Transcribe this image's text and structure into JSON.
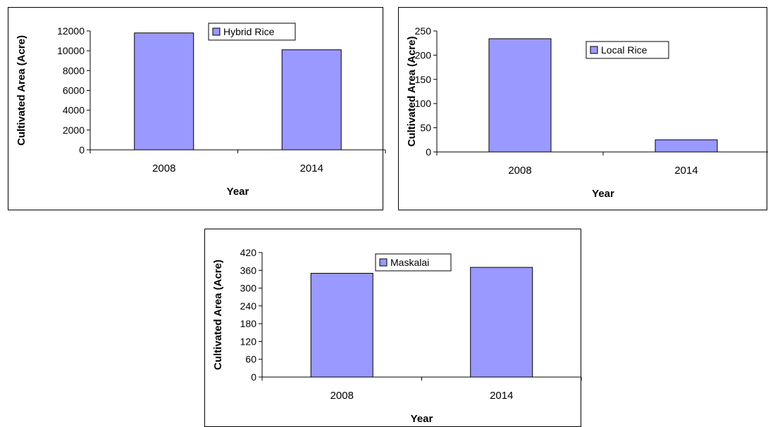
{
  "chart_data": [
    {
      "type": "bar",
      "categories": [
        "2008",
        "2014"
      ],
      "series": [
        {
          "name": "Hybrid Rice",
          "values": [
            11800,
            10100
          ]
        }
      ],
      "ylim": [
        0,
        12000
      ],
      "yticks": [
        0,
        2000,
        4000,
        6000,
        8000,
        10000,
        12000
      ],
      "xlabel": "Year",
      "ylabel": "Cultivated Area (Acre)",
      "legend": "top-center",
      "grid": false,
      "bar_color": "#9999ff"
    },
    {
      "type": "bar",
      "categories": [
        "2008",
        "2014"
      ],
      "series": [
        {
          "name": "Local Rice",
          "values": [
            234,
            25
          ]
        }
      ],
      "ylim": [
        0,
        250
      ],
      "yticks": [
        0,
        50,
        100,
        150,
        200,
        250
      ],
      "xlabel": "Year",
      "ylabel": "Cultivated Area (Acre)",
      "legend": "top-right",
      "grid": false,
      "bar_color": "#9999ff"
    },
    {
      "type": "bar",
      "categories": [
        "2008",
        "2014"
      ],
      "series": [
        {
          "name": "Maskalai",
          "values": [
            350,
            370
          ]
        }
      ],
      "ylim": [
        0,
        420
      ],
      "yticks": [
        0,
        60,
        120,
        180,
        240,
        300,
        360,
        420
      ],
      "xlabel": "Year",
      "ylabel": "Cultivated Area (Acre)",
      "legend": "top-center",
      "grid": false,
      "bar_color": "#9999ff"
    }
  ]
}
